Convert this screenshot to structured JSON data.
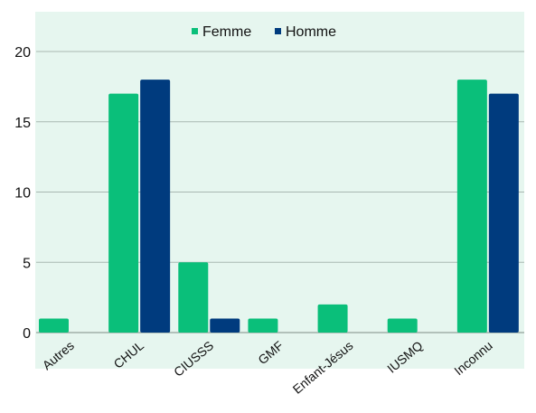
{
  "chart_data": {
    "type": "bar",
    "categories": [
      "Autres",
      "CHUL",
      "CIUSSS",
      "GMF",
      "Enfant-Jésus",
      "IUSMQ",
      "Inconnu"
    ],
    "series": [
      {
        "name": "Femme",
        "values": [
          1,
          17,
          5,
          1,
          2,
          1,
          18
        ]
      },
      {
        "name": "Homme",
        "values": [
          0,
          18,
          1,
          0,
          0,
          0,
          17
        ]
      }
    ],
    "yticks": [
      "0",
      "5",
      "10",
      "15",
      "20"
    ],
    "ylim": [
      0,
      20
    ],
    "grid": true,
    "legend_position": "top-center",
    "colors": {
      "Femme": "#0abf7a",
      "Homme": "#003b7e",
      "plot_background": "#e6f6ef",
      "grid": "#a9b8b2"
    }
  }
}
